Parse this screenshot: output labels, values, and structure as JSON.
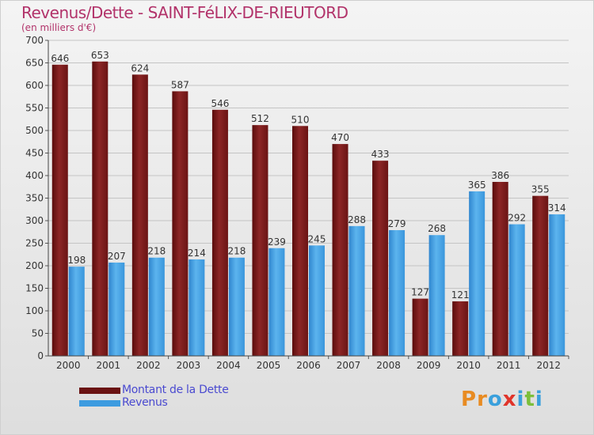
{
  "header": {
    "title": "Revenus/Dette - SAINT-FéLIX-DE-RIEUTORD",
    "subtitle": "(en milliers d'€)"
  },
  "legend": {
    "dette_label": "Montant de la Dette",
    "revenus_label": "Revenus"
  },
  "logo": {
    "letters": [
      "P",
      "r",
      "o",
      "x",
      "i",
      "t",
      "i"
    ]
  },
  "colors": {
    "title": "#b2336a",
    "dette": "#7a1818",
    "revenus": "#3d9be0",
    "legend_text": "#4a4ad0",
    "logo_letters": [
      "#e88b22",
      "#e88b22",
      "#3aa0dc",
      "#e0342a",
      "#3aa0dc",
      "#7cbf3c",
      "#3aa0dc"
    ]
  },
  "chart_data": {
    "type": "bar",
    "categories": [
      "2000",
      "2001",
      "2002",
      "2003",
      "2004",
      "2005",
      "2006",
      "2007",
      "2008",
      "2009",
      "2010",
      "2011",
      "2012"
    ],
    "series": [
      {
        "name": "Montant de la Dette",
        "values": [
          646,
          653,
          624,
          587,
          546,
          512,
          510,
          470,
          433,
          127,
          121,
          386,
          355
        ]
      },
      {
        "name": "Revenus",
        "values": [
          198,
          207,
          218,
          214,
          218,
          239,
          245,
          288,
          279,
          268,
          365,
          292,
          314
        ]
      }
    ],
    "ylim": [
      0,
      700
    ],
    "yticks": [
      0,
      50,
      100,
      150,
      200,
      250,
      300,
      350,
      400,
      450,
      500,
      550,
      600,
      650,
      700
    ],
    "grid": true,
    "legend_position": "bottom-left"
  }
}
